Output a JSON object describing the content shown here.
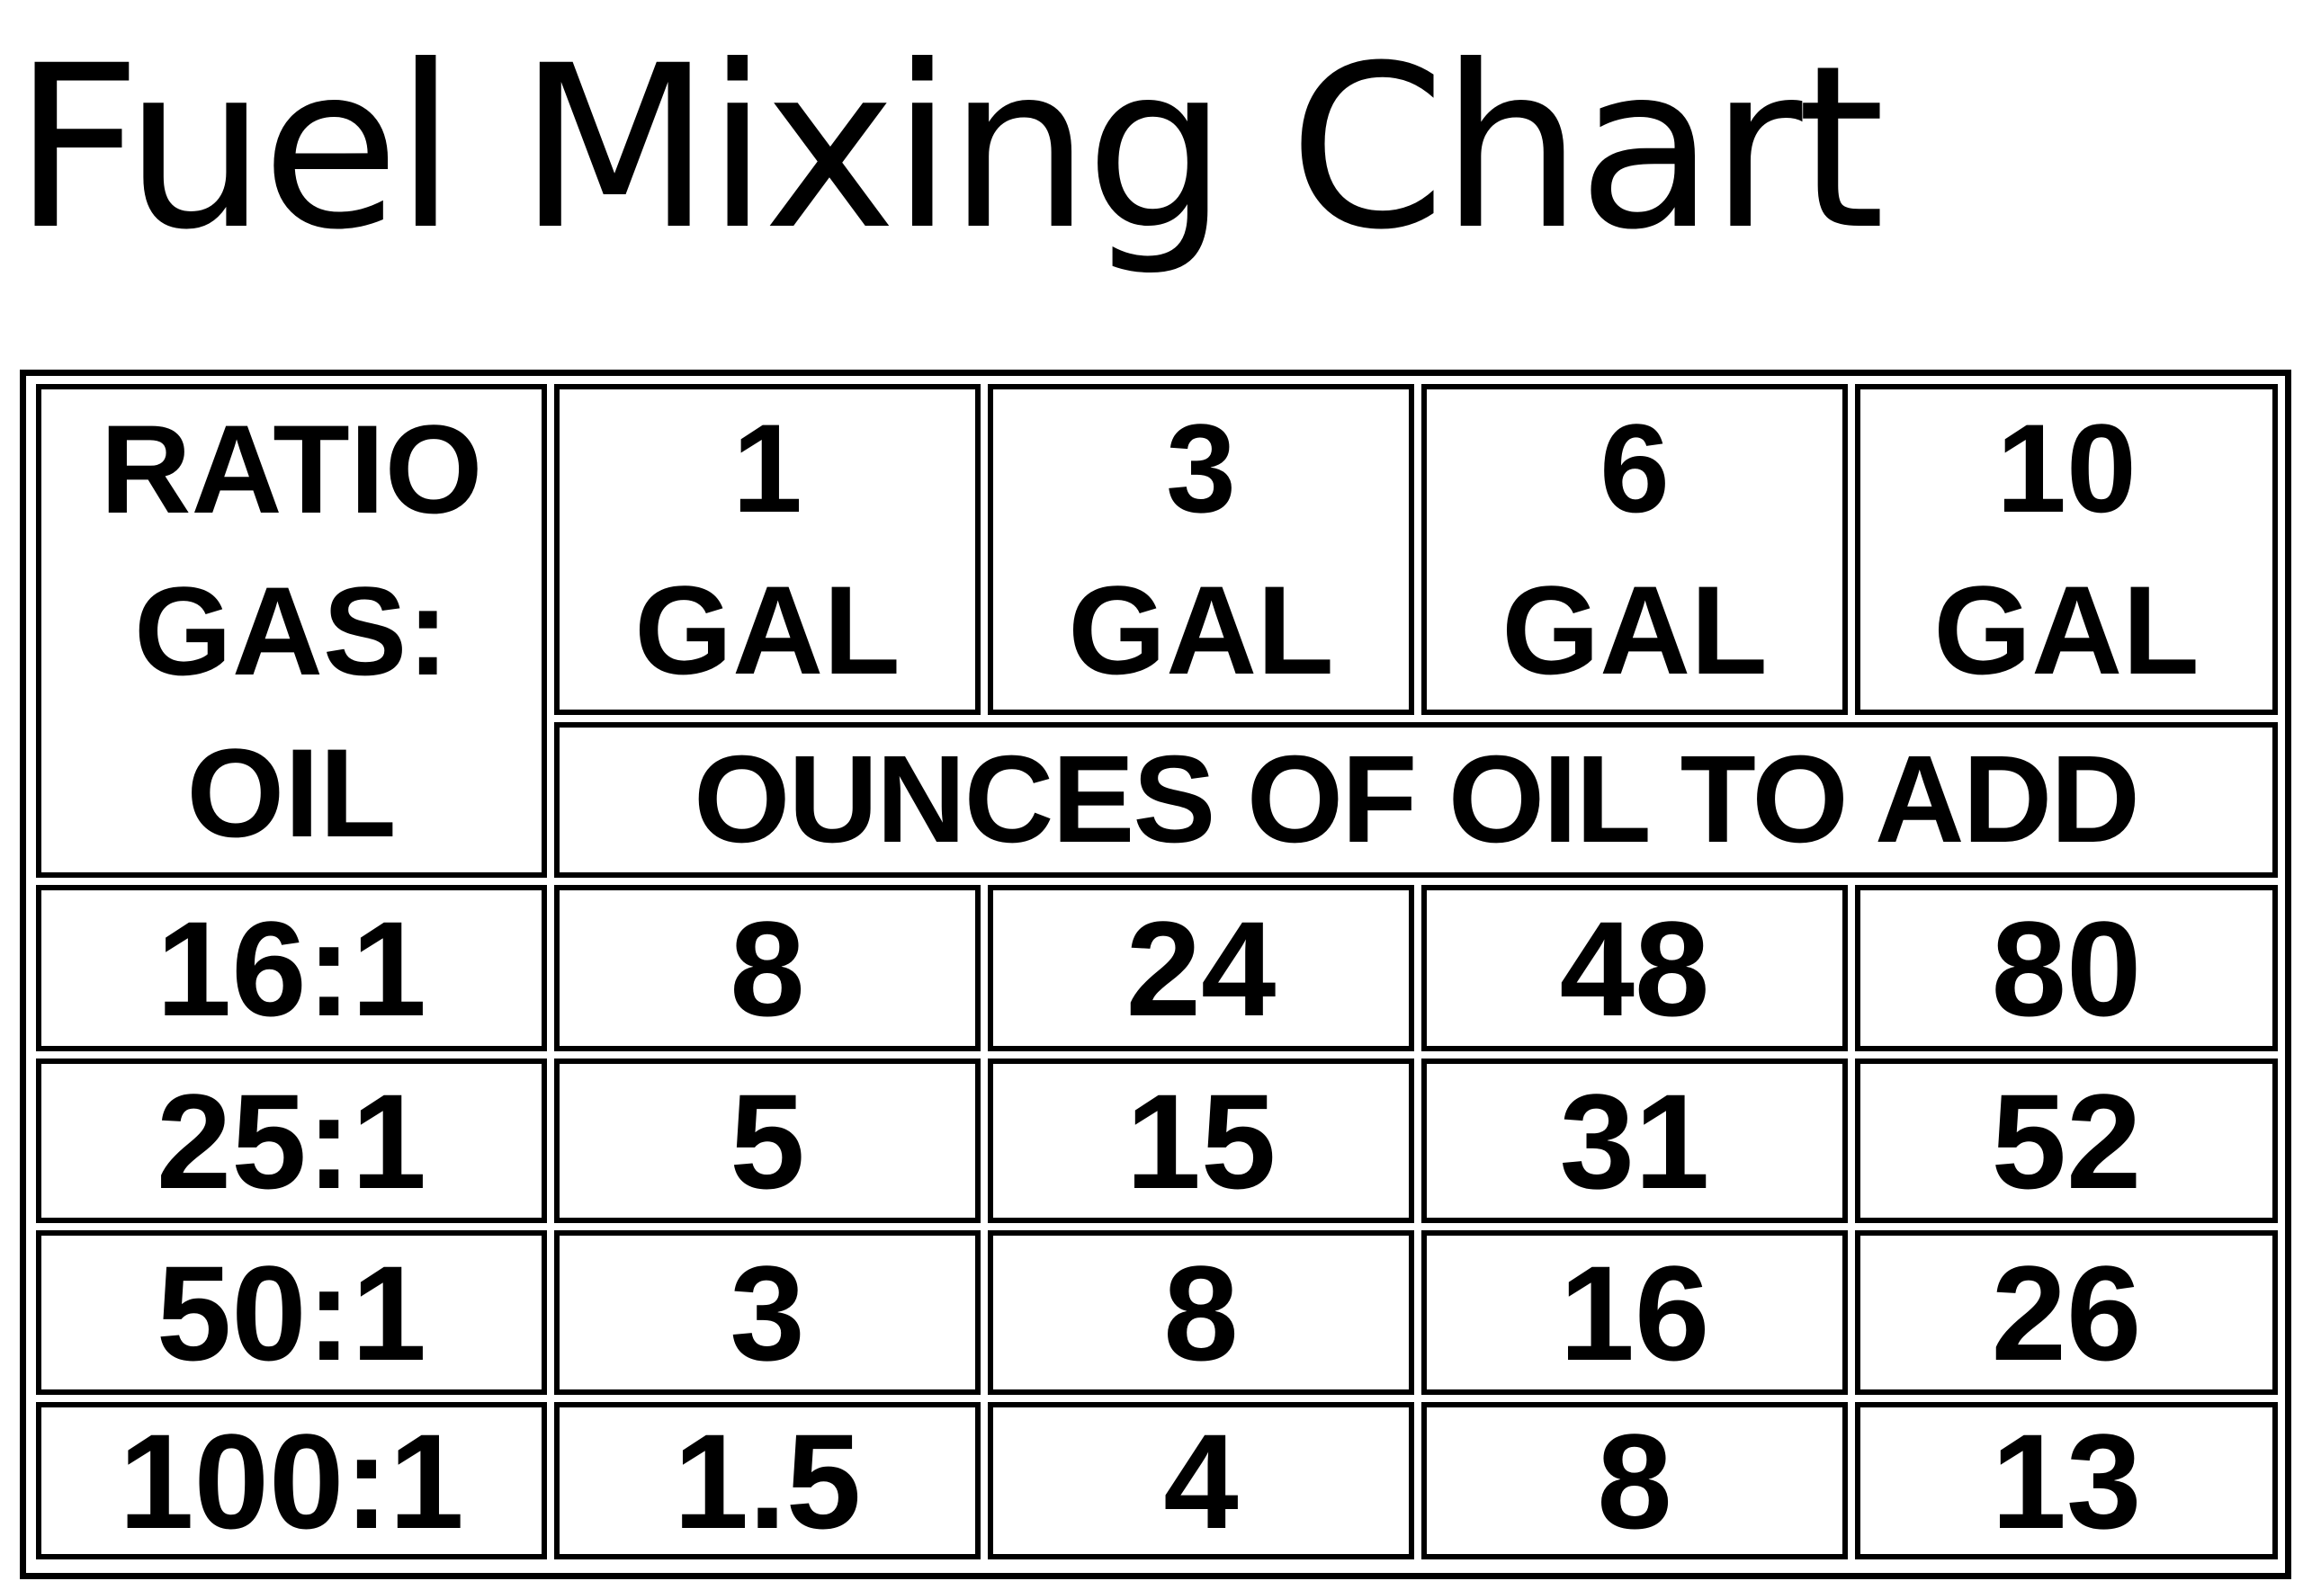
{
  "title": "Fuel Mixing Chart",
  "table": {
    "ratio_header": [
      "RATIO",
      "GAS:",
      "OIL"
    ],
    "columns": [
      {
        "amount": "1",
        "unit": "GAL"
      },
      {
        "amount": "3",
        "unit": "GAL"
      },
      {
        "amount": "6",
        "unit": "GAL"
      },
      {
        "amount": "10",
        "unit": "GAL"
      }
    ],
    "subheader": "OUNCES OF OIL TO ADD",
    "rows": [
      [
        "16:1",
        "8",
        "24",
        "48",
        "80"
      ],
      [
        "25:1",
        "5",
        "15",
        "31",
        "52"
      ],
      [
        "50:1",
        "3",
        "8",
        "16",
        "26"
      ],
      [
        "100:1",
        "1.5",
        "4",
        "8",
        "13"
      ]
    ]
  }
}
